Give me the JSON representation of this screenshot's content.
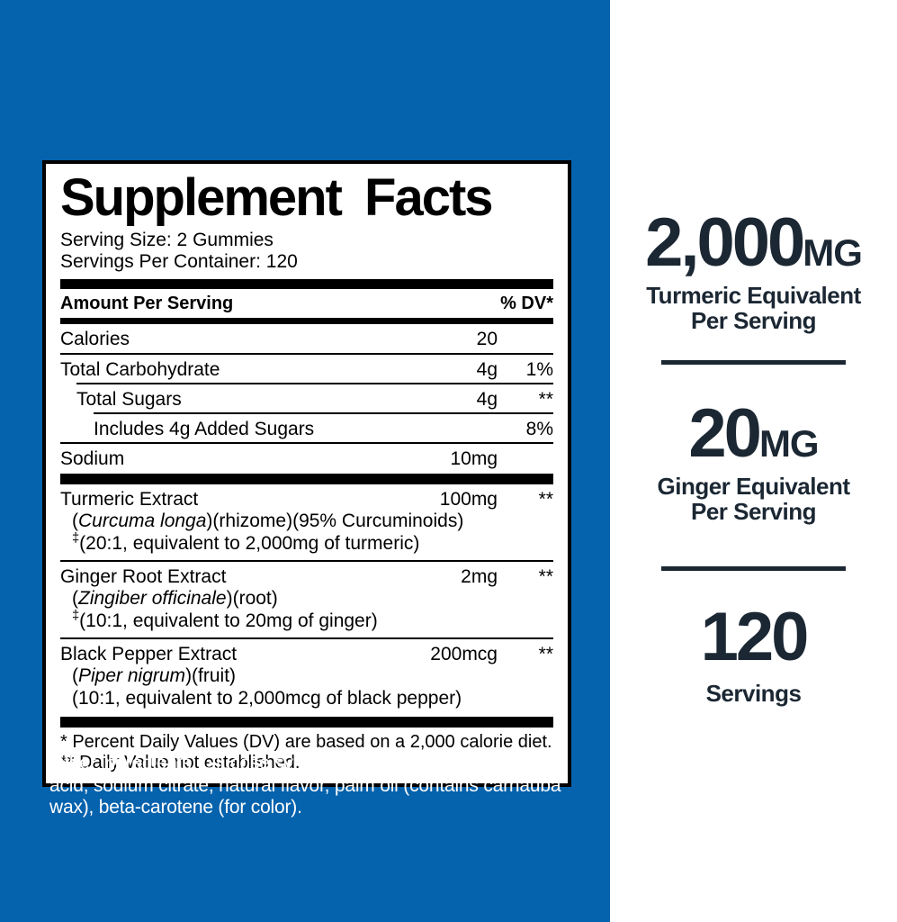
{
  "colors": {
    "blue": "#0562AD",
    "navy": "#1B2733"
  },
  "panel": {
    "title": "Supplement Facts",
    "serving_size": "Serving Size: 2 Gummies",
    "servings_per_container": "Servings Per Container: 120",
    "header": {
      "amount_label": "Amount Per Serving",
      "dv_label": "% DV*"
    },
    "rows": [
      {
        "name": "Calories",
        "amount": "20",
        "dv": ""
      },
      {
        "name": "Total Carbohydrate",
        "amount": "4g",
        "dv": "1%"
      },
      {
        "name": "Total Sugars",
        "amount": "4g",
        "dv": "**"
      },
      {
        "name": "Includes 4g Added Sugars",
        "amount": "",
        "dv": "8%"
      },
      {
        "name": "Sodium",
        "amount": "10mg",
        "dv": ""
      }
    ],
    "extracts": [
      {
        "name": "Turmeric Extract",
        "amount": "100mg",
        "dv": "**",
        "latin_pre": "(",
        "latin": "Curcuma longa",
        "latin_post": ")(rhizome)(95% Curcuminoids)",
        "dagger": "‡",
        "equiv": "(20:1, equivalent to 2,000mg of turmeric)"
      },
      {
        "name": "Ginger Root Extract",
        "amount": "2mg",
        "dv": "**",
        "latin_pre": "(",
        "latin": "Zingiber officinale",
        "latin_post": ")(root)",
        "dagger": "‡",
        "equiv": "(10:1, equivalent to 20mg of ginger)"
      },
      {
        "name": "Black Pepper Extract",
        "amount": "200mcg",
        "dv": "**",
        "latin_pre": "(",
        "latin": "Piper nigrum",
        "latin_post": ")(fruit)",
        "dagger": "",
        "equiv": "(10:1, equivalent to 2,000mcg of black pepper)"
      }
    ],
    "footnotes": [
      "* Percent Daily Values (DV) are based on a 2,000 calorie diet.",
      "** Daily Value not established."
    ]
  },
  "other_ingredients": "Other ingredients: Glucose syrup, sugar, dextrose, pectin, citric acid, sodium citrate, natural flavor, palm oil (contains carnauba wax), beta-carotene (for color).",
  "highlights": [
    {
      "value": "2,000",
      "unit": "MG",
      "sub1": "Turmeric Equivalent",
      "sub2": "Per Serving"
    },
    {
      "value": "20",
      "unit": "MG",
      "sub1": "Ginger Equivalent",
      "sub2": "Per Serving"
    },
    {
      "value": "120",
      "unit": "",
      "sub1": "Servings",
      "sub2": ""
    }
  ]
}
